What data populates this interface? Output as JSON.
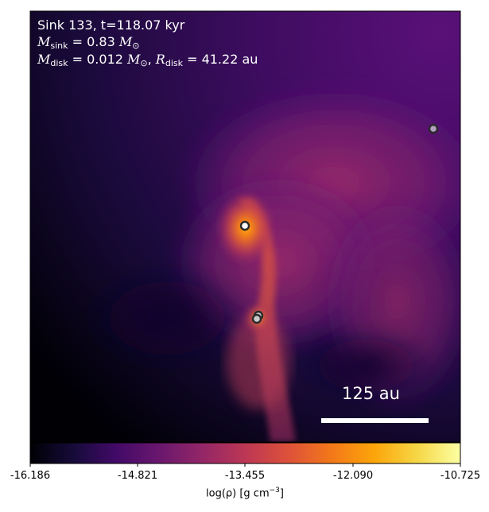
{
  "annotation": {
    "line1": "Sink 133, t=118.07 kyr",
    "sink_mass_prefix": "M",
    "sink_mass_sub": "sink",
    "sink_mass_value": "= 0.83",
    "sink_mass_unit": "M",
    "sun_symbol": "⊙",
    "disk_mass_prefix": "M",
    "disk_mass_sub": "disk",
    "disk_mass_value": "= 0.012",
    "disk_mass_unit": "M",
    "disk_radius_prefix": "R",
    "disk_radius_sub": "disk",
    "disk_radius_value": "= 41.22 au"
  },
  "scale_bar": {
    "label": "125 au"
  },
  "colorbar": {
    "ticks": [
      "-16.186",
      "-14.821",
      "-13.455",
      "-12.090",
      "-10.725"
    ],
    "label_main": "log(ρ) [g cm",
    "label_sup": "−3",
    "label_end": "]",
    "colors": [
      "#000004",
      "#160b39",
      "#420a68",
      "#6a176e",
      "#932667",
      "#bc3754",
      "#dd513a",
      "#f37819",
      "#fca50a",
      "#f6d746",
      "#fcffa4"
    ]
  },
  "sinks": [
    "sink-1",
    "sink-2",
    "sink-3",
    "sink-4"
  ]
}
